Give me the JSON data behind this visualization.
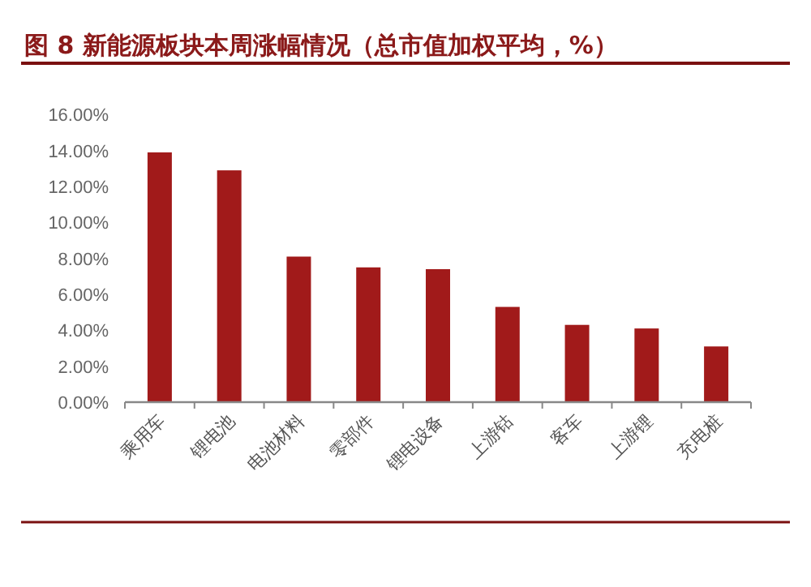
{
  "chart_data": {
    "type": "bar",
    "title": "图 8 新能源板块本周涨幅情况（总市值加权平均，%）",
    "categories": [
      "乘用车",
      "锂电池",
      "电池材料",
      "零部件",
      "锂电设备",
      "上游钴",
      "客车",
      "上游锂",
      "充电桩"
    ],
    "values": [
      13.9,
      12.9,
      8.1,
      7.5,
      7.4,
      5.3,
      4.3,
      4.1,
      3.1
    ],
    "color": "#a11a1a",
    "ylim": [
      0,
      16
    ],
    "yticks": [
      {
        "value": 0,
        "label": "0.00%"
      },
      {
        "value": 2,
        "label": "2.00%"
      },
      {
        "value": 4,
        "label": "4.00%"
      },
      {
        "value": 6,
        "label": "6.00%"
      },
      {
        "value": 8,
        "label": "8.00%"
      },
      {
        "value": 10,
        "label": "10.00%"
      },
      {
        "value": 12,
        "label": "12.00%"
      },
      {
        "value": 14,
        "label": "14.00%"
      },
      {
        "value": 16,
        "label": "16.00%"
      }
    ],
    "grid": false
  }
}
